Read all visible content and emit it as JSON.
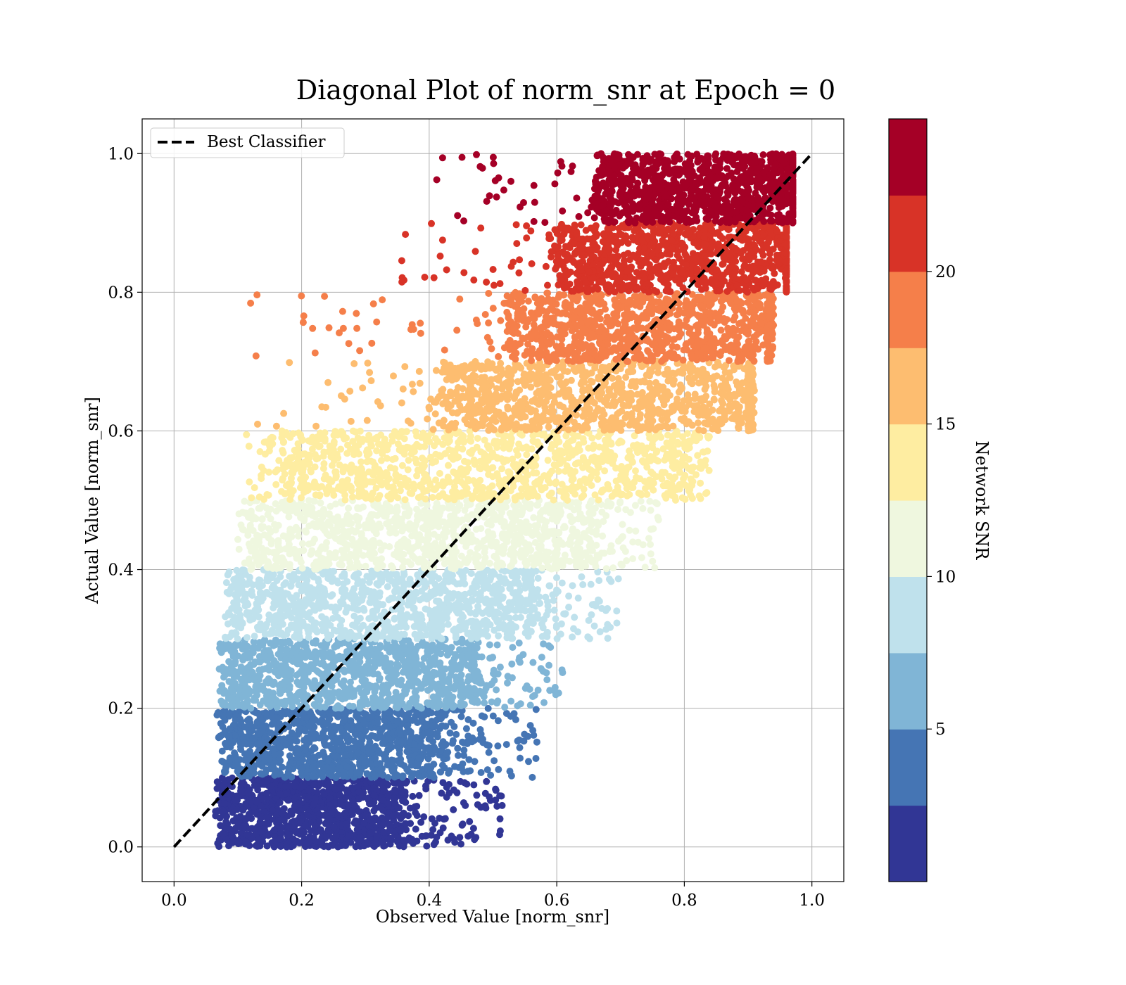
{
  "chart_data": {
    "type": "scatter",
    "title": "Diagonal Plot of norm_snr at Epoch = 0",
    "xlabel": "Observed Value [norm_snr]",
    "ylabel": "Actual Value [norm_snr]",
    "xlim": [
      -0.05,
      1.05
    ],
    "ylim": [
      -0.05,
      1.05
    ],
    "x_ticks": [
      "0.0",
      "0.2",
      "0.4",
      "0.6",
      "0.8",
      "1.0"
    ],
    "y_ticks": [
      "0.0",
      "0.2",
      "0.4",
      "0.6",
      "0.8",
      "1.0"
    ],
    "grid": true,
    "legend": {
      "position": "upper-left",
      "entries": [
        {
          "label": "Best Classifier",
          "style": "dashed",
          "color": "#000000"
        }
      ]
    },
    "reference_line": {
      "x": [
        0.0,
        1.0
      ],
      "y": [
        0.0,
        1.0
      ]
    },
    "colorbar": {
      "label": "Network SNR",
      "range": [
        0,
        25
      ],
      "ticks": [
        "5",
        "10",
        "15",
        "20"
      ],
      "tick_values": [
        5,
        10,
        15,
        20
      ],
      "colors": [
        "#313695",
        "#4575b4",
        "#80b5d6",
        "#bfe1ec",
        "#eff7df",
        "#feeda1",
        "#fdbd70",
        "#f57f4a",
        "#d83327",
        "#a50026"
      ]
    },
    "bands": [
      {
        "y_range": [
          0.0,
          0.1
        ],
        "core_x": [
          0.08,
          0.36
        ],
        "x_min": 0.065,
        "x_max": 0.52,
        "snr": 1.25
      },
      {
        "y_range": [
          0.1,
          0.2
        ],
        "core_x": [
          0.09,
          0.42
        ],
        "x_min": 0.065,
        "x_max": 0.57,
        "snr": 3.75
      },
      {
        "y_range": [
          0.2,
          0.3
        ],
        "core_x": [
          0.09,
          0.47
        ],
        "x_min": 0.07,
        "x_max": 0.61,
        "snr": 6.25
      },
      {
        "y_range": [
          0.3,
          0.4
        ],
        "core_x": [
          0.1,
          0.56
        ],
        "x_min": 0.08,
        "x_max": 0.7,
        "snr": 8.75
      },
      {
        "y_range": [
          0.4,
          0.5
        ],
        "core_x": [
          0.13,
          0.65
        ],
        "x_min": 0.1,
        "x_max": 0.76,
        "snr": 11.25
      },
      {
        "y_range": [
          0.5,
          0.6
        ],
        "core_x": [
          0.17,
          0.78
        ],
        "x_min": 0.11,
        "x_max": 0.84,
        "snr": 13.75
      },
      {
        "y_range": [
          0.6,
          0.7
        ],
        "core_x": [
          0.42,
          0.9
        ],
        "x_min": 0.13,
        "x_max": 0.91,
        "snr": 16.25
      },
      {
        "y_range": [
          0.7,
          0.8
        ],
        "core_x": [
          0.52,
          0.93
        ],
        "x_min": 0.12,
        "x_max": 0.94,
        "snr": 18.75
      },
      {
        "y_range": [
          0.8,
          0.9
        ],
        "core_x": [
          0.6,
          0.96
        ],
        "x_min": 0.35,
        "x_max": 0.96,
        "snr": 21.25
      },
      {
        "y_range": [
          0.9,
          1.0
        ],
        "core_x": [
          0.66,
          0.97
        ],
        "x_min": 0.4,
        "x_max": 0.97,
        "snr": 23.75
      }
    ]
  }
}
